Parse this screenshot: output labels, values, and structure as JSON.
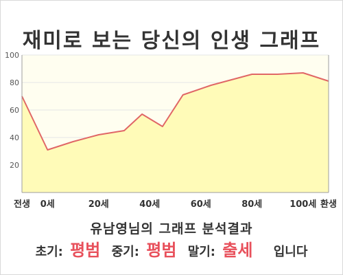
{
  "title": "재미로 보는 당신의 인생 그래프",
  "colors": {
    "plot_bg": "#fffef0",
    "area_fill": "#fffbb8",
    "line": "#e06666",
    "highlight": "#e8505b",
    "grid": "#e6e6e6",
    "axis": "#9e9e9e"
  },
  "chart_data": {
    "type": "area",
    "title": "재미로 보는 당신의 인생 그래프",
    "xlabel": "",
    "ylabel": "",
    "ylim": [
      0,
      100
    ],
    "yticks": [
      20,
      40,
      60,
      80,
      100
    ],
    "xlim": [
      -10,
      110
    ],
    "xticks": [
      {
        "x": -10,
        "label": "전생"
      },
      {
        "x": 0,
        "label": "0세"
      },
      {
        "x": 20,
        "label": "20세"
      },
      {
        "x": 40,
        "label": "40세"
      },
      {
        "x": 60,
        "label": "60세"
      },
      {
        "x": 80,
        "label": "80세"
      },
      {
        "x": 100,
        "label": "100세"
      },
      {
        "x": 110,
        "label": "환생"
      }
    ],
    "grid": true,
    "series": [
      {
        "x": [
          -10,
          0,
          10,
          20,
          30,
          37,
          45,
          53,
          64,
          80,
          90,
          100,
          110
        ],
        "values": [
          70,
          31,
          37,
          42,
          45,
          57,
          48,
          71,
          78,
          86,
          86,
          87,
          81
        ]
      }
    ]
  },
  "result": {
    "heading": "유남영님의 그래프 분석결과",
    "early_label": "초기:",
    "early_value": "평범",
    "middle_label": "중기:",
    "middle_value": "평범",
    "late_label": "말기:",
    "late_value": "출세",
    "tail": "입니다"
  }
}
